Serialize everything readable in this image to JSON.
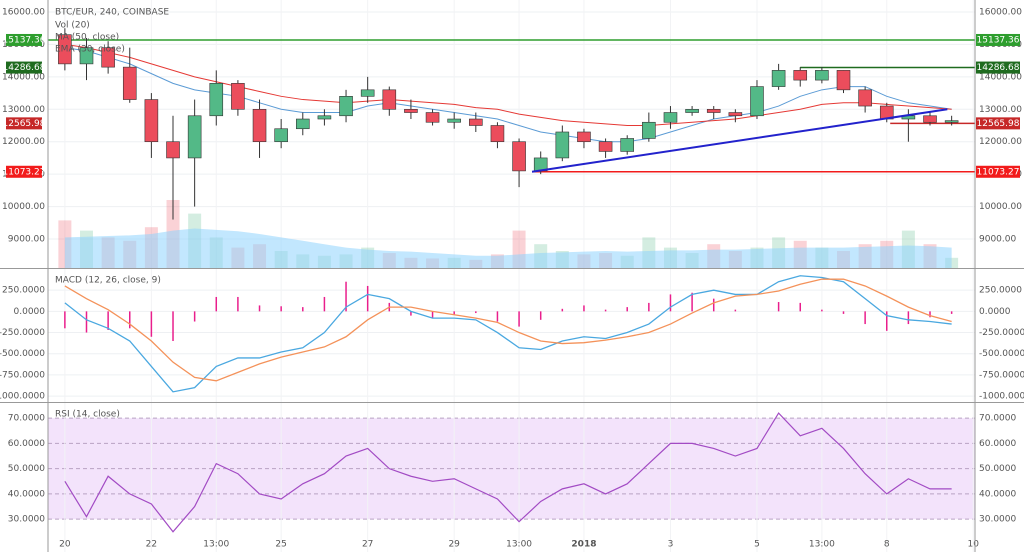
{
  "chart_data": {
    "type": "candlestick",
    "title": "BTC/EUR, 240, COINBASE",
    "xlim": [
      -0.39,
      21.04
    ],
    "xticks": [
      {
        "value": 0,
        "label": "20"
      },
      {
        "value": 2,
        "label": "22"
      },
      {
        "value": 3.5,
        "label": "13:00"
      },
      {
        "value": 5,
        "label": "25"
      },
      {
        "value": 7,
        "label": "27"
      },
      {
        "value": 9,
        "label": "29"
      },
      {
        "value": 10.5,
        "label": "13:00"
      },
      {
        "value": 12,
        "label": "2018"
      },
      {
        "value": 14,
        "label": "3"
      },
      {
        "value": 16,
        "label": "5"
      },
      {
        "value": 17.5,
        "label": "13:00"
      },
      {
        "value": 19,
        "label": "8"
      },
      {
        "value": 21,
        "label": "10"
      }
    ],
    "x": [
      0,
      0.5,
      1,
      1.5,
      2,
      2.5,
      3,
      3.5,
      4,
      4.5,
      5,
      5.5,
      6,
      6.5,
      7,
      7.5,
      8,
      8.5,
      9,
      9.5,
      10,
      10.5,
      11,
      11.5,
      12,
      12.5,
      13,
      13.5,
      14,
      14.5,
      15,
      15.5,
      16,
      16.5,
      17,
      17.5,
      18,
      18.5,
      19,
      19.5,
      20,
      20.5
    ],
    "ylim": [
      8106,
      16370
    ],
    "yticks": [
      {
        "value": 16000,
        "label": "16000.00"
      },
      {
        "value": 15000,
        "label": "15000.00"
      },
      {
        "value": 14000,
        "label": "14000.00"
      },
      {
        "value": 13000,
        "label": "13000.00"
      },
      {
        "value": 12000,
        "label": "12000.00"
      },
      {
        "value": 11000,
        "label": "11000.00"
      },
      {
        "value": 10000,
        "label": "10000.00"
      },
      {
        "value": 9000,
        "label": "9000.00"
      }
    ],
    "up_color": "#53b987",
    "down_color": "#eb4d5c",
    "candles": [
      [
        15300,
        15500,
        14200,
        14400
      ],
      [
        14400,
        15200,
        13900,
        14900
      ],
      [
        14900,
        15100,
        14100,
        14300
      ],
      [
        14300,
        14900,
        13200,
        13300
      ],
      [
        13300,
        13500,
        11500,
        12000
      ],
      [
        12000,
        12800,
        9600,
        11500
      ],
      [
        11500,
        13300,
        10000,
        12800
      ],
      [
        12800,
        14200,
        12500,
        13800
      ],
      [
        13800,
        13900,
        12800,
        13000
      ],
      [
        13000,
        13300,
        11500,
        12000
      ],
      [
        12000,
        12700,
        11800,
        12400
      ],
      [
        12400,
        12900,
        12200,
        12700
      ],
      [
        12700,
        13000,
        12500,
        12800
      ],
      [
        12800,
        13600,
        12600,
        13400
      ],
      [
        13400,
        14000,
        13200,
        13600
      ],
      [
        13600,
        13700,
        12800,
        13000
      ],
      [
        13000,
        13300,
        12700,
        12900
      ],
      [
        12900,
        13000,
        12500,
        12600
      ],
      [
        12600,
        12900,
        12400,
        12700
      ],
      [
        12700,
        12900,
        12300,
        12500
      ],
      [
        12500,
        12600,
        11800,
        12000
      ],
      [
        12000,
        12100,
        10600,
        11100
      ],
      [
        11100,
        11700,
        11000,
        11500
      ],
      [
        11500,
        12500,
        11400,
        12300
      ],
      [
        12300,
        12400,
        11800,
        12000
      ],
      [
        12000,
        12100,
        11500,
        11700
      ],
      [
        11700,
        12200,
        11600,
        12100
      ],
      [
        12100,
        12900,
        12000,
        12600
      ],
      [
        12600,
        13100,
        12400,
        12900
      ],
      [
        12900,
        13100,
        12800,
        13000
      ],
      [
        13000,
        13100,
        12700,
        12900
      ],
      [
        12900,
        13000,
        12600,
        12800
      ],
      [
        12800,
        13900,
        12700,
        13700
      ],
      [
        13700,
        14400,
        13600,
        14200
      ],
      [
        14200,
        14300,
        13700,
        13900
      ],
      [
        13900,
        14300,
        13800,
        14200
      ],
      [
        14200,
        14200,
        13500,
        13600
      ],
      [
        13600,
        13700,
        12900,
        13100
      ],
      [
        13100,
        13200,
        12600,
        12700
      ],
      [
        12700,
        13000,
        12000,
        12800
      ],
      [
        12800,
        12900,
        12500,
        12600
      ],
      [
        12600,
        12800,
        12500,
        12650
      ]
    ],
    "series": [
      {
        "name": "MA (50, close)",
        "color": "#5b9bd5",
        "values": [
          14900,
          14800,
          14600,
          14400,
          14100,
          13800,
          13600,
          13500,
          13400,
          13200,
          13000,
          12900,
          12900,
          12900,
          13100,
          13200,
          13100,
          13000,
          12900,
          12800,
          12700,
          12500,
          12300,
          12200,
          12100,
          12000,
          12000,
          12100,
          12300,
          12500,
          12700,
          12800,
          12900,
          13100,
          13400,
          13600,
          13700,
          13700,
          13400,
          13200,
          13100,
          13000
        ]
      },
      {
        "name": "EMA (30, close)",
        "color": "#e53935",
        "values": [
          15000,
          14900,
          14750,
          14600,
          14400,
          14200,
          14000,
          13850,
          13700,
          13550,
          13400,
          13300,
          13250,
          13200,
          13250,
          13300,
          13250,
          13200,
          13150,
          13050,
          13000,
          12850,
          12750,
          12650,
          12600,
          12550,
          12500,
          12500,
          12550,
          12600,
          12650,
          12700,
          12800,
          12900,
          13000,
          13150,
          13200,
          13200,
          13150,
          13100,
          13050,
          13000
        ]
      }
    ],
    "volume": {
      "name": "Vol (20)",
      "ylim": [
        0,
        100
      ],
      "ma_color": "#8fd3fe",
      "values": [
        70,
        55,
        45,
        40,
        60,
        100,
        80,
        45,
        30,
        35,
        25,
        20,
        18,
        20,
        30,
        22,
        15,
        14,
        15,
        12,
        20,
        55,
        35,
        25,
        20,
        22,
        18,
        45,
        30,
        22,
        35,
        25,
        30,
        45,
        40,
        30,
        25,
        35,
        40,
        55,
        35,
        15
      ],
      "ma": [
        45,
        46,
        47,
        48,
        50,
        55,
        58,
        56,
        54,
        50,
        45,
        40,
        35,
        30,
        27,
        25,
        24,
        22,
        20,
        18,
        18,
        20,
        22,
        23,
        24,
        25,
        24,
        25,
        26,
        26,
        27,
        27,
        28,
        29,
        30,
        30,
        30,
        31,
        32,
        33,
        32,
        30
      ]
    },
    "levels": [
      {
        "value": 15137.36,
        "from": -0.39,
        "color": "#2e9e2e"
      },
      {
        "value": 14286.68,
        "from": 17.0,
        "color": "#1f6b1f"
      },
      {
        "value": 12565.98,
        "from": 19.08,
        "color": "#c62828"
      },
      {
        "value": 11073.27,
        "from": 10.8,
        "color": "#f21b1b"
      }
    ],
    "trendline": {
      "color": "#2222cc",
      "points": [
        [
          10.8,
          11073
        ],
        [
          20.4,
          13000
        ]
      ]
    },
    "macd": {
      "title": "MACD (12, 26, close, 9)",
      "ylim": [
        -1070,
        500
      ],
      "yticks": [
        {
          "value": 250,
          "label": "250.0000"
        },
        {
          "value": 0,
          "label": "0.0000"
        },
        {
          "value": -250,
          "label": "-250.0000"
        },
        {
          "value": -500,
          "label": "-500.0000"
        },
        {
          "value": -750,
          "label": "-750.0000"
        },
        {
          "value": -1000,
          "label": "-1000.0000"
        }
      ],
      "hist_color": "#e91e8c",
      "histogram": [
        -200,
        -250,
        -220,
        -200,
        -300,
        -350,
        -120,
        170,
        170,
        70,
        60,
        50,
        170,
        350,
        300,
        100,
        -50,
        -80,
        -40,
        -20,
        -120,
        -180,
        -100,
        30,
        70,
        20,
        50,
        100,
        200,
        220,
        150,
        20,
        0,
        110,
        100,
        20,
        -30,
        -150,
        -230,
        -150,
        -70,
        -30
      ],
      "series": [
        {
          "color": "#4aa8e0",
          "values": [
            100,
            -100,
            -200,
            -350,
            -650,
            -950,
            -900,
            -650,
            -550,
            -550,
            -480,
            -430,
            -250,
            50,
            200,
            150,
            0,
            -80,
            -80,
            -100,
            -250,
            -430,
            -450,
            -350,
            -300,
            -320,
            -250,
            -150,
            50,
            200,
            250,
            200,
            200,
            350,
            420,
            400,
            350,
            150,
            -50,
            -100,
            -120,
            -150
          ]
        },
        {
          "color": "#f4925a",
          "values": [
            300,
            150,
            20,
            -150,
            -350,
            -600,
            -780,
            -820,
            -720,
            -620,
            -540,
            -480,
            -420,
            -300,
            -100,
            50,
            50,
            0,
            -40,
            -80,
            -130,
            -250,
            -350,
            -380,
            -370,
            -340,
            -300,
            -250,
            -150,
            -20,
            100,
            180,
            200,
            240,
            320,
            380,
            380,
            300,
            180,
            50,
            -50,
            -120
          ]
        }
      ]
    },
    "rsi": {
      "title": "RSI (14, close)",
      "ylim": [
        17,
        76
      ],
      "band": [
        30,
        70
      ],
      "color": "#a24bc4",
      "yticks": [
        {
          "value": 70,
          "label": "70.0000"
        },
        {
          "value": 60,
          "label": "60.0000"
        },
        {
          "value": 50,
          "label": "50.0000"
        },
        {
          "value": 40,
          "label": "40.0000"
        },
        {
          "value": 30,
          "label": "30.0000"
        }
      ],
      "values": [
        45,
        31,
        47,
        40,
        36,
        25,
        35,
        52,
        48,
        40,
        38,
        44,
        48,
        55,
        58,
        50,
        47,
        45,
        46,
        42,
        38,
        29,
        37,
        42,
        44,
        40,
        44,
        52,
        60,
        60,
        58,
        55,
        58,
        72,
        63,
        66,
        58,
        48,
        40,
        46,
        42,
        42
      ]
    }
  }
}
